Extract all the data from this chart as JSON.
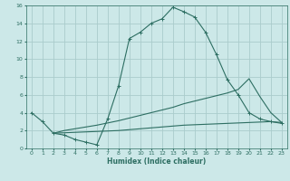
{
  "xlabel": "Humidex (Indice chaleur)",
  "bg_color": "#cce8e8",
  "grid_color": "#aacccc",
  "line_color": "#2d6e62",
  "xlim": [
    -0.5,
    23.5
  ],
  "ylim": [
    0,
    16
  ],
  "xticks": [
    0,
    1,
    2,
    3,
    4,
    5,
    6,
    7,
    8,
    9,
    10,
    11,
    12,
    13,
    14,
    15,
    16,
    17,
    18,
    19,
    20,
    21,
    22,
    23
  ],
  "yticks": [
    0,
    2,
    4,
    6,
    8,
    10,
    12,
    14,
    16
  ],
  "series": [
    {
      "x": [
        0,
        1,
        2,
        3,
        4,
        5,
        6,
        7,
        8,
        9,
        10,
        11,
        12,
        13,
        14,
        15,
        16,
        17,
        18,
        19,
        20,
        21,
        22,
        23
      ],
      "y": [
        4,
        3,
        1.7,
        1.5,
        1.0,
        0.7,
        0.4,
        3.3,
        7.0,
        12.3,
        13.0,
        14.0,
        14.5,
        15.8,
        15.3,
        14.7,
        13.0,
        10.5,
        7.7,
        6.0,
        4.0,
        3.3,
        3.0,
        2.8
      ],
      "marker": "+"
    },
    {
      "x": [
        2,
        3,
        4,
        5,
        6,
        7,
        8,
        9,
        10,
        11,
        12,
        13,
        14,
        15,
        16,
        17,
        18,
        19,
        20,
        21,
        22,
        23
      ],
      "y": [
        1.7,
        2.0,
        2.2,
        2.4,
        2.6,
        2.85,
        3.1,
        3.4,
        3.7,
        4.0,
        4.3,
        4.6,
        5.0,
        5.3,
        5.6,
        5.9,
        6.2,
        6.6,
        7.8,
        5.8,
        4.0,
        2.9
      ],
      "marker": null
    },
    {
      "x": [
        2,
        3,
        4,
        5,
        6,
        7,
        8,
        9,
        10,
        11,
        12,
        13,
        14,
        15,
        16,
        17,
        18,
        19,
        20,
        21,
        22,
        23
      ],
      "y": [
        1.7,
        1.75,
        1.8,
        1.85,
        1.9,
        1.95,
        2.0,
        2.1,
        2.2,
        2.3,
        2.4,
        2.5,
        2.6,
        2.65,
        2.7,
        2.75,
        2.8,
        2.85,
        2.9,
        2.95,
        3.0,
        2.9
      ],
      "marker": null
    }
  ]
}
